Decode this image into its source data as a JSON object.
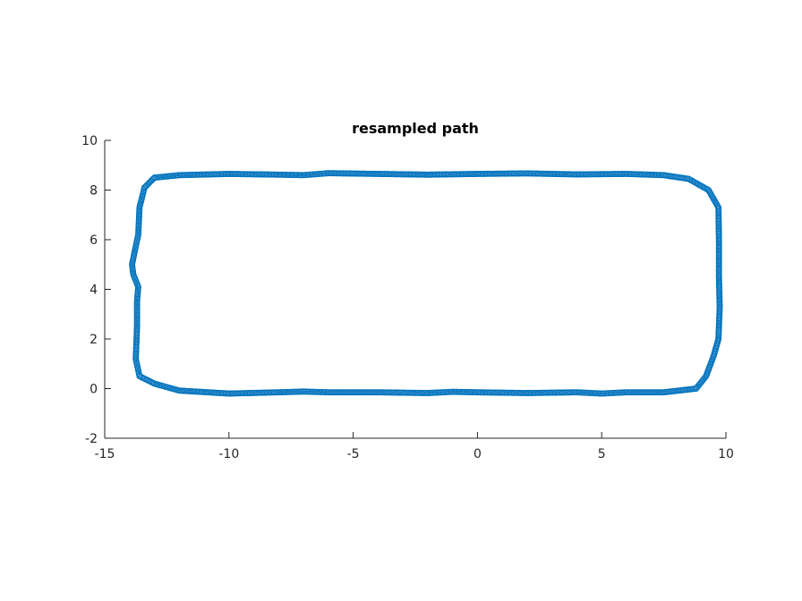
{
  "chart_data": {
    "type": "scatter",
    "title": "resampled path",
    "xlabel": "",
    "ylabel": "",
    "xlim": [
      -15,
      10
    ],
    "ylim": [
      -2,
      10
    ],
    "xticks": [
      -15,
      -10,
      -5,
      0,
      5,
      10
    ],
    "yticks": [
      -2,
      0,
      2,
      4,
      6,
      8,
      10
    ],
    "xtick_labels": [
      "-15",
      "-10",
      "-5",
      "0",
      "5",
      "10"
    ],
    "ytick_labels": [
      "-2",
      "0",
      "2",
      "4",
      "6",
      "8",
      "10"
    ],
    "grid": false,
    "legend": "none",
    "marker": "circle-open",
    "color": "#0072BD",
    "axis_color": "#262626",
    "path": [
      [
        -13.0,
        8.5
      ],
      [
        -12.0,
        8.6
      ],
      [
        -10.0,
        8.65
      ],
      [
        -8.0,
        8.62
      ],
      [
        -7.0,
        8.6
      ],
      [
        -6.0,
        8.68
      ],
      [
        -4.0,
        8.65
      ],
      [
        -2.0,
        8.62
      ],
      [
        0.0,
        8.65
      ],
      [
        2.0,
        8.67
      ],
      [
        4.0,
        8.63
      ],
      [
        6.0,
        8.65
      ],
      [
        7.5,
        8.6
      ],
      [
        8.5,
        8.45
      ],
      [
        9.3,
        8.0
      ],
      [
        9.7,
        7.3
      ],
      [
        9.72,
        6.0
      ],
      [
        9.72,
        4.5
      ],
      [
        9.75,
        3.3
      ],
      [
        9.7,
        2.0
      ],
      [
        9.5,
        1.3
      ],
      [
        9.2,
        0.5
      ],
      [
        8.8,
        0.0
      ],
      [
        7.5,
        -0.15
      ],
      [
        6.0,
        -0.15
      ],
      [
        5.0,
        -0.2
      ],
      [
        4.0,
        -0.15
      ],
      [
        2.0,
        -0.18
      ],
      [
        0.0,
        -0.15
      ],
      [
        -1.0,
        -0.13
      ],
      [
        -2.0,
        -0.18
      ],
      [
        -4.0,
        -0.15
      ],
      [
        -6.0,
        -0.15
      ],
      [
        -7.0,
        -0.12
      ],
      [
        -8.0,
        -0.15
      ],
      [
        -10.0,
        -0.2
      ],
      [
        -12.0,
        -0.08
      ],
      [
        -13.0,
        0.2
      ],
      [
        -13.6,
        0.5
      ],
      [
        -13.75,
        1.2
      ],
      [
        -13.7,
        2.5
      ],
      [
        -13.7,
        3.5
      ],
      [
        -13.65,
        4.1
      ],
      [
        -13.85,
        4.6
      ],
      [
        -13.9,
        5.0
      ],
      [
        -13.8,
        5.5
      ],
      [
        -13.65,
        6.2
      ],
      [
        -13.6,
        7.3
      ],
      [
        -13.4,
        8.1
      ],
      [
        -13.0,
        8.5
      ]
    ]
  }
}
